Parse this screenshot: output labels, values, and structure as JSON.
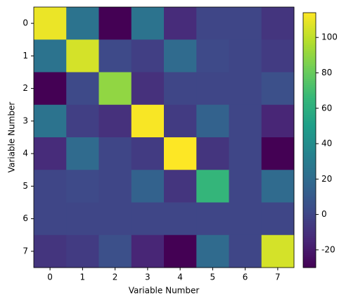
{
  "chart_data": {
    "type": "heatmap",
    "colormap": "viridis",
    "xlabel": "Variable Number",
    "ylabel": "Variable Number",
    "xticks": [
      0,
      1,
      2,
      3,
      4,
      5,
      6,
      7
    ],
    "yticks": [
      0,
      1,
      2,
      3,
      4,
      5,
      6,
      7
    ],
    "values": [
      [
        110,
        25,
        -30,
        25,
        -12,
        0,
        0,
        -8
      ],
      [
        25,
        105,
        2,
        -3,
        20,
        2,
        0,
        -5
      ],
      [
        -30,
        2,
        90,
        -10,
        0,
        0,
        0,
        5
      ],
      [
        25,
        -3,
        -10,
        113,
        -5,
        15,
        0,
        -15
      ],
      [
        -12,
        20,
        0,
        -5,
        114,
        -8,
        0,
        -30
      ],
      [
        0,
        2,
        0,
        15,
        -8,
        65,
        0,
        20
      ],
      [
        0,
        0,
        0,
        0,
        0,
        0,
        0,
        0
      ],
      [
        -8,
        -5,
        5,
        -15,
        -30,
        20,
        0,
        105
      ]
    ],
    "clim": [
      -30,
      114
    ],
    "colorbar_ticks": [
      -20,
      0,
      20,
      40,
      60,
      80,
      100
    ]
  }
}
